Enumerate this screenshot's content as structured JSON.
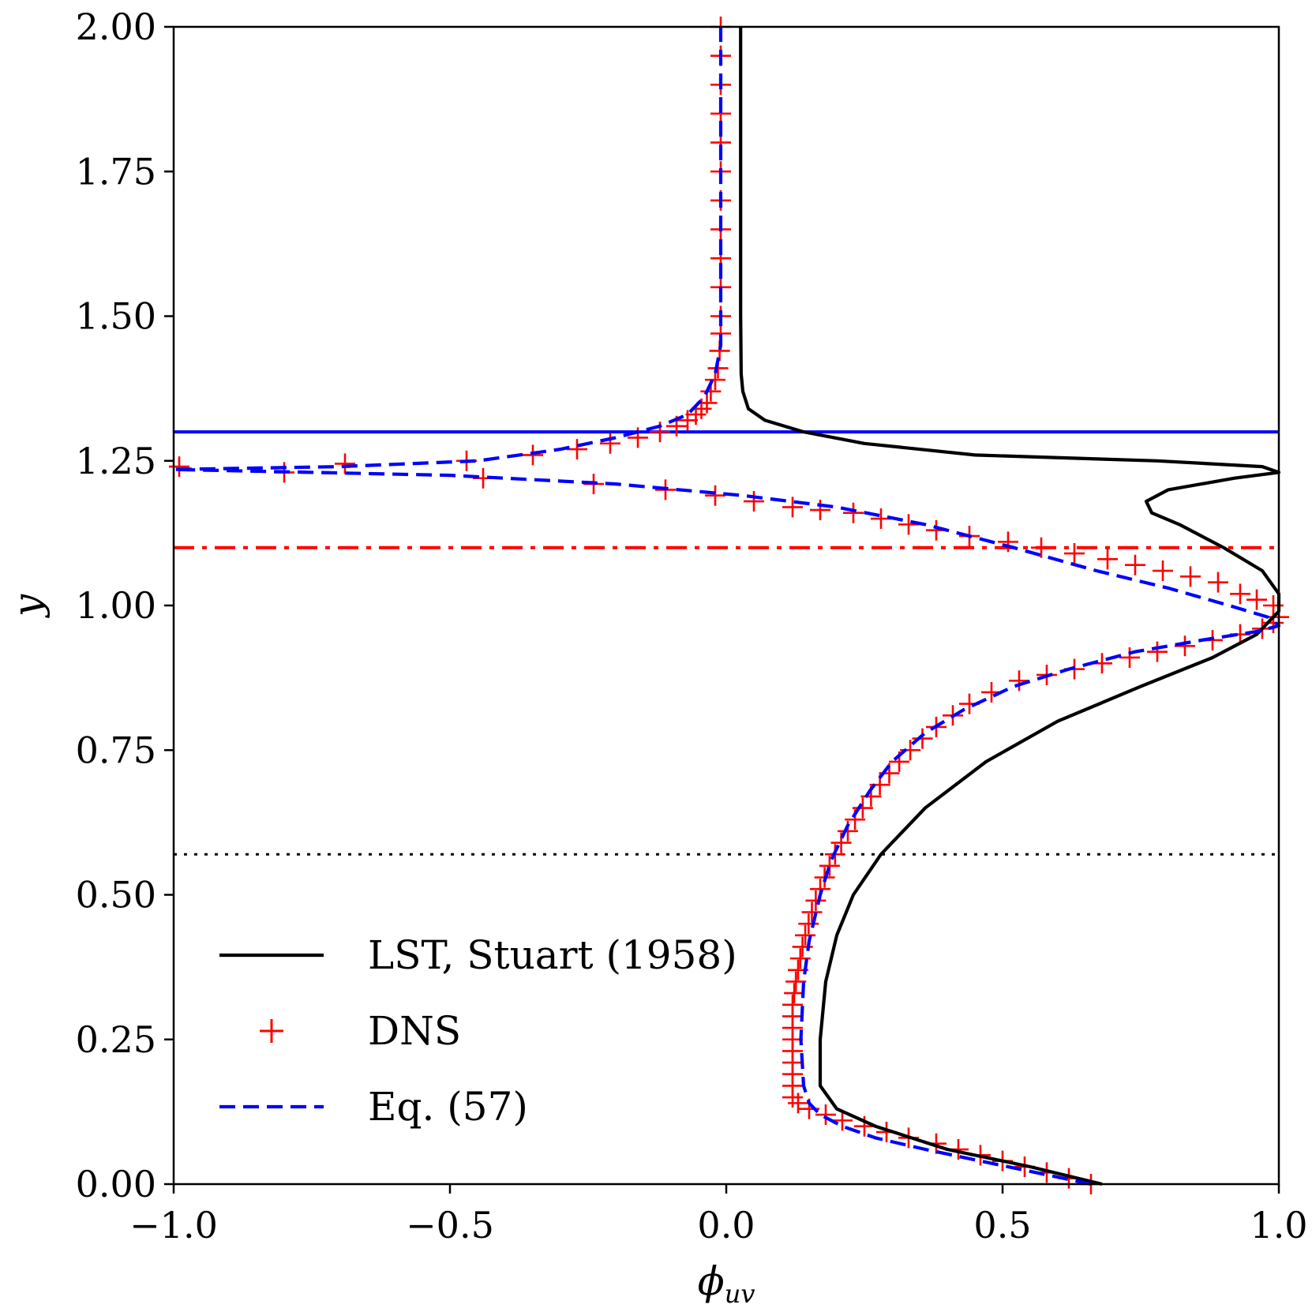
{
  "chart_data": {
    "type": "line",
    "xlabel": "ϕuv",
    "xlabel_symbol": "ϕ",
    "xlabel_subscript": "uv",
    "ylabel": "y",
    "xlim": [
      -1.0,
      1.0
    ],
    "ylim": [
      0.0,
      2.0
    ],
    "x_ticks": [
      -1.0,
      -0.5,
      0.0,
      0.5,
      1.0
    ],
    "x_tick_labels": [
      "−1.0",
      "−0.5",
      "0.0",
      "0.5",
      "1.0"
    ],
    "y_ticks": [
      0.0,
      0.25,
      0.5,
      0.75,
      1.0,
      1.25,
      1.5,
      1.75,
      2.0
    ],
    "y_tick_labels": [
      "0.00",
      "0.25",
      "0.50",
      "0.75",
      "1.00",
      "1.25",
      "1.50",
      "1.75",
      "2.00"
    ],
    "grid": false,
    "legend_position": "lower-left",
    "series": [
      {
        "name": "LST, Stuart (1958)",
        "style": "solid",
        "color": "#000000",
        "points": [
          [
            0.68,
            0.0
          ],
          [
            0.55,
            0.03
          ],
          [
            0.4,
            0.06
          ],
          [
            0.27,
            0.1
          ],
          [
            0.2,
            0.13
          ],
          [
            0.17,
            0.17
          ],
          [
            0.17,
            0.25
          ],
          [
            0.18,
            0.35
          ],
          [
            0.2,
            0.43
          ],
          [
            0.23,
            0.5
          ],
          [
            0.28,
            0.57
          ],
          [
            0.36,
            0.65
          ],
          [
            0.47,
            0.73
          ],
          [
            0.6,
            0.8
          ],
          [
            0.75,
            0.86
          ],
          [
            0.88,
            0.91
          ],
          [
            0.96,
            0.95
          ],
          [
            1.0,
            0.99
          ],
          [
            1.0,
            1.02
          ],
          [
            0.97,
            1.06
          ],
          [
            0.9,
            1.1
          ],
          [
            0.82,
            1.14
          ],
          [
            0.77,
            1.16
          ],
          [
            0.76,
            1.18
          ],
          [
            0.8,
            1.2
          ],
          [
            0.92,
            1.22
          ],
          [
            1.0,
            1.23
          ],
          [
            0.97,
            1.24
          ],
          [
            0.78,
            1.25
          ],
          [
            0.45,
            1.26
          ],
          [
            0.25,
            1.28
          ],
          [
            0.14,
            1.3
          ],
          [
            0.07,
            1.32
          ],
          [
            0.04,
            1.34
          ],
          [
            0.03,
            1.37
          ],
          [
            0.027,
            1.4
          ],
          [
            0.026,
            1.5
          ],
          [
            0.026,
            1.75
          ],
          [
            0.026,
            2.0
          ]
        ]
      },
      {
        "name": "DNS",
        "style": "marker-plus",
        "color": "#ff0000",
        "points": [
          [
            0.66,
            0.0
          ],
          [
            0.62,
            0.01
          ],
          [
            0.58,
            0.02
          ],
          [
            0.54,
            0.03
          ],
          [
            0.5,
            0.04
          ],
          [
            0.46,
            0.05
          ],
          [
            0.42,
            0.06
          ],
          [
            0.38,
            0.07
          ],
          [
            0.33,
            0.08
          ],
          [
            0.29,
            0.09
          ],
          [
            0.25,
            0.1
          ],
          [
            0.21,
            0.11
          ],
          [
            0.18,
            0.12
          ],
          [
            0.15,
            0.13
          ],
          [
            0.13,
            0.14
          ],
          [
            0.12,
            0.15
          ],
          [
            0.12,
            0.17
          ],
          [
            0.12,
            0.19
          ],
          [
            0.12,
            0.21
          ],
          [
            0.12,
            0.23
          ],
          [
            0.12,
            0.25
          ],
          [
            0.12,
            0.27
          ],
          [
            0.12,
            0.29
          ],
          [
            0.12,
            0.31
          ],
          [
            0.123,
            0.33
          ],
          [
            0.126,
            0.35
          ],
          [
            0.13,
            0.37
          ],
          [
            0.134,
            0.39
          ],
          [
            0.138,
            0.41
          ],
          [
            0.143,
            0.43
          ],
          [
            0.149,
            0.45
          ],
          [
            0.155,
            0.47
          ],
          [
            0.162,
            0.49
          ],
          [
            0.17,
            0.51
          ],
          [
            0.178,
            0.53
          ],
          [
            0.187,
            0.55
          ],
          [
            0.197,
            0.57
          ],
          [
            0.208,
            0.59
          ],
          [
            0.22,
            0.61
          ],
          [
            0.233,
            0.63
          ],
          [
            0.247,
            0.65
          ],
          [
            0.262,
            0.67
          ],
          [
            0.278,
            0.69
          ],
          [
            0.295,
            0.71
          ],
          [
            0.313,
            0.73
          ],
          [
            0.333,
            0.75
          ],
          [
            0.355,
            0.77
          ],
          [
            0.38,
            0.79
          ],
          [
            0.41,
            0.81
          ],
          [
            0.44,
            0.83
          ],
          [
            0.48,
            0.85
          ],
          [
            0.53,
            0.87
          ],
          [
            0.58,
            0.88
          ],
          [
            0.63,
            0.89
          ],
          [
            0.68,
            0.9
          ],
          [
            0.73,
            0.91
          ],
          [
            0.78,
            0.92
          ],
          [
            0.83,
            0.93
          ],
          [
            0.88,
            0.94
          ],
          [
            0.93,
            0.95
          ],
          [
            0.97,
            0.96
          ],
          [
            0.99,
            0.97
          ],
          [
            1.0,
            0.98
          ],
          [
            0.99,
            1.0
          ],
          [
            0.96,
            1.01
          ],
          [
            0.93,
            1.02
          ],
          [
            0.89,
            1.04
          ],
          [
            0.84,
            1.05
          ],
          [
            0.79,
            1.06
          ],
          [
            0.74,
            1.07
          ],
          [
            0.69,
            1.08
          ],
          [
            0.63,
            1.09
          ],
          [
            0.57,
            1.1
          ],
          [
            0.51,
            1.11
          ],
          [
            0.44,
            1.12
          ],
          [
            0.38,
            1.13
          ],
          [
            0.33,
            1.14
          ],
          [
            0.28,
            1.15
          ],
          [
            0.23,
            1.16
          ],
          [
            0.17,
            1.165
          ],
          [
            0.12,
            1.17
          ],
          [
            0.05,
            1.18
          ],
          [
            -0.02,
            1.19
          ],
          [
            -0.11,
            1.2
          ],
          [
            -0.24,
            1.21
          ],
          [
            -0.44,
            1.22
          ],
          [
            -0.8,
            1.23
          ],
          [
            -0.99,
            1.24
          ],
          [
            -0.69,
            1.245
          ],
          [
            -0.47,
            1.25
          ],
          [
            -0.35,
            1.26
          ],
          [
            -0.27,
            1.27
          ],
          [
            -0.21,
            1.28
          ],
          [
            -0.16,
            1.29
          ],
          [
            -0.12,
            1.3
          ],
          [
            -0.09,
            1.31
          ],
          [
            -0.07,
            1.32
          ],
          [
            -0.055,
            1.33
          ],
          [
            -0.045,
            1.34
          ],
          [
            -0.035,
            1.35
          ],
          [
            -0.028,
            1.37
          ],
          [
            -0.02,
            1.39
          ],
          [
            -0.015,
            1.41
          ],
          [
            -0.012,
            1.44
          ],
          [
            -0.01,
            1.47
          ],
          [
            -0.01,
            1.5
          ],
          [
            -0.01,
            1.55
          ],
          [
            -0.01,
            1.6
          ],
          [
            -0.01,
            1.65
          ],
          [
            -0.01,
            1.7
          ],
          [
            -0.01,
            1.75
          ],
          [
            -0.01,
            1.8
          ],
          [
            -0.01,
            1.85
          ],
          [
            -0.01,
            1.9
          ],
          [
            -0.01,
            1.95
          ],
          [
            -0.01,
            2.0
          ]
        ]
      },
      {
        "name": "Eq. (57)",
        "style": "dashed",
        "color": "#0000ff",
        "points": [
          [
            0.66,
            0.0
          ],
          [
            0.56,
            0.02
          ],
          [
            0.46,
            0.04
          ],
          [
            0.36,
            0.06
          ],
          [
            0.27,
            0.08
          ],
          [
            0.21,
            0.1
          ],
          [
            0.17,
            0.12
          ],
          [
            0.15,
            0.14
          ],
          [
            0.14,
            0.17
          ],
          [
            0.135,
            0.25
          ],
          [
            0.14,
            0.35
          ],
          [
            0.15,
            0.42
          ],
          [
            0.17,
            0.5
          ],
          [
            0.19,
            0.56
          ],
          [
            0.22,
            0.62
          ],
          [
            0.26,
            0.68
          ],
          [
            0.3,
            0.73
          ],
          [
            0.36,
            0.78
          ],
          [
            0.43,
            0.82
          ],
          [
            0.52,
            0.86
          ],
          [
            0.62,
            0.89
          ],
          [
            0.74,
            0.92
          ],
          [
            0.86,
            0.94
          ],
          [
            0.96,
            0.955
          ],
          [
            1.0,
            0.965
          ],
          [
            0.98,
            0.98
          ],
          [
            0.91,
            1.0
          ],
          [
            0.8,
            1.03
          ],
          [
            0.67,
            1.06
          ],
          [
            0.52,
            1.1
          ],
          [
            0.36,
            1.14
          ],
          [
            0.2,
            1.17
          ],
          [
            0.03,
            1.19
          ],
          [
            -0.2,
            1.21
          ],
          [
            -0.5,
            1.225
          ],
          [
            -1.0,
            1.235
          ],
          [
            -0.7,
            1.24
          ],
          [
            -0.45,
            1.25
          ],
          [
            -0.3,
            1.27
          ],
          [
            -0.2,
            1.29
          ],
          [
            -0.12,
            1.31
          ],
          [
            -0.07,
            1.33
          ],
          [
            -0.04,
            1.36
          ],
          [
            -0.02,
            1.4
          ],
          [
            -0.01,
            1.45
          ],
          [
            -0.01,
            1.5
          ],
          [
            -0.01,
            1.75
          ],
          [
            -0.01,
            2.0
          ]
        ]
      }
    ],
    "reference_lines": [
      {
        "orientation": "horizontal",
        "y": 1.3,
        "style": "solid",
        "color": "#0000ff"
      },
      {
        "orientation": "horizontal",
        "y": 1.1,
        "style": "dashdot",
        "color": "#ff0000"
      },
      {
        "orientation": "horizontal",
        "y": 0.57,
        "style": "dotted",
        "color": "#000000"
      }
    ]
  }
}
